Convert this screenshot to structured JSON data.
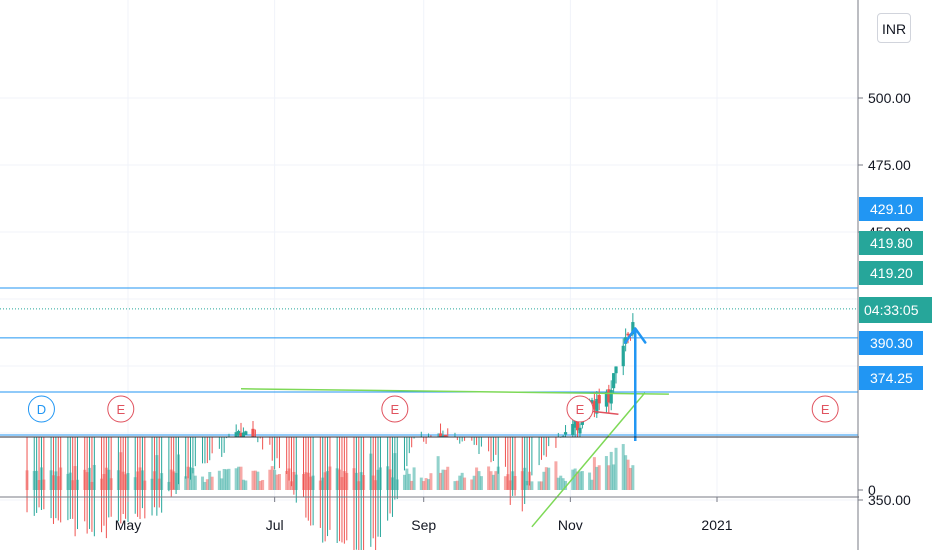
{
  "currency": "INR",
  "chart_data": {
    "type": "candlestick",
    "price_axis": {
      "ticks": [
        {
          "value": 500,
          "label": "500.00"
        },
        {
          "value": 475,
          "label": "475.00"
        },
        {
          "value": 450,
          "label": "450.00"
        },
        {
          "value": 350,
          "label": "350.00"
        }
      ]
    },
    "volume_axis": {
      "ticks": [
        {
          "value": 0,
          "label": "0"
        }
      ]
    },
    "time_axis": {
      "labels": [
        {
          "date": "2020-05-01",
          "label": "May"
        },
        {
          "date": "2020-07-01",
          "label": "Jul"
        },
        {
          "date": "2020-09-01",
          "label": "Sep"
        },
        {
          "date": "2020-11-01",
          "label": "Nov"
        },
        {
          "date": "2021-01-01",
          "label": "2021"
        }
      ]
    },
    "horizontal_levels": [
      {
        "value": 429.1,
        "label": "429.10",
        "color": "#2196f3"
      },
      {
        "value": 410.5,
        "label": "",
        "color": "#2196f3"
      },
      {
        "value": 390.3,
        "label": "390.30",
        "color": "#2196f3"
      },
      {
        "value": 374.25,
        "label": "374.25",
        "color": "#2196f3"
      }
    ],
    "price_badges": [
      {
        "value": 429.1,
        "label": "429.10",
        "color": "#2196f3"
      },
      {
        "value": 419.8,
        "label": "419.80",
        "color": "#26a69a"
      },
      {
        "value": 419.2,
        "label": "419.20",
        "color": "#26a69a"
      },
      {
        "value": 390.3,
        "label": "390.30",
        "color": "#2196f3"
      },
      {
        "value": 374.25,
        "label": "374.25",
        "color": "#2196f3"
      }
    ],
    "countdown": {
      "label": "04:33:05",
      "color": "#26a69a"
    },
    "event_markers": [
      {
        "date": "2020-03-26",
        "letter": "D",
        "kind": "dividend",
        "color": "#2196f3"
      },
      {
        "date": "2020-04-28",
        "letter": "E",
        "kind": "earnings",
        "color": "#e0525e"
      },
      {
        "date": "2020-08-20",
        "letter": "E",
        "kind": "earnings",
        "color": "#e0525e"
      },
      {
        "date": "2020-11-05",
        "letter": "E",
        "kind": "earnings",
        "color": "#e0525e"
      },
      {
        "date": "2021-02-15",
        "letter": "E",
        "kind": "earnings",
        "color": "#e0525e"
      }
    ],
    "trendlines": [
      {
        "from": {
          "date": "2020-06-17",
          "value": 391.5
        },
        "to": {
          "date": "2020-12-12",
          "value": 389.5
        },
        "color": "#7ed957"
      },
      {
        "from": {
          "date": "2020-10-16",
          "value": 340.0
        },
        "to": {
          "date": "2020-12-02",
          "value": 390.0
        },
        "color": "#7ed957"
      },
      {
        "from": {
          "date": "2020-11-01",
          "value": 384.0
        },
        "to": {
          "date": "2020-11-21",
          "value": 382.0
        },
        "color": "#e0525e"
      }
    ],
    "arrow": {
      "from": {
        "date": "2020-11-28",
        "value": 372
      },
      "to": {
        "date": "2020-11-28",
        "value": 414
      },
      "color": "#2196f3"
    },
    "colors": {
      "up": "#26a69a",
      "down": "#ef5350"
    }
  }
}
